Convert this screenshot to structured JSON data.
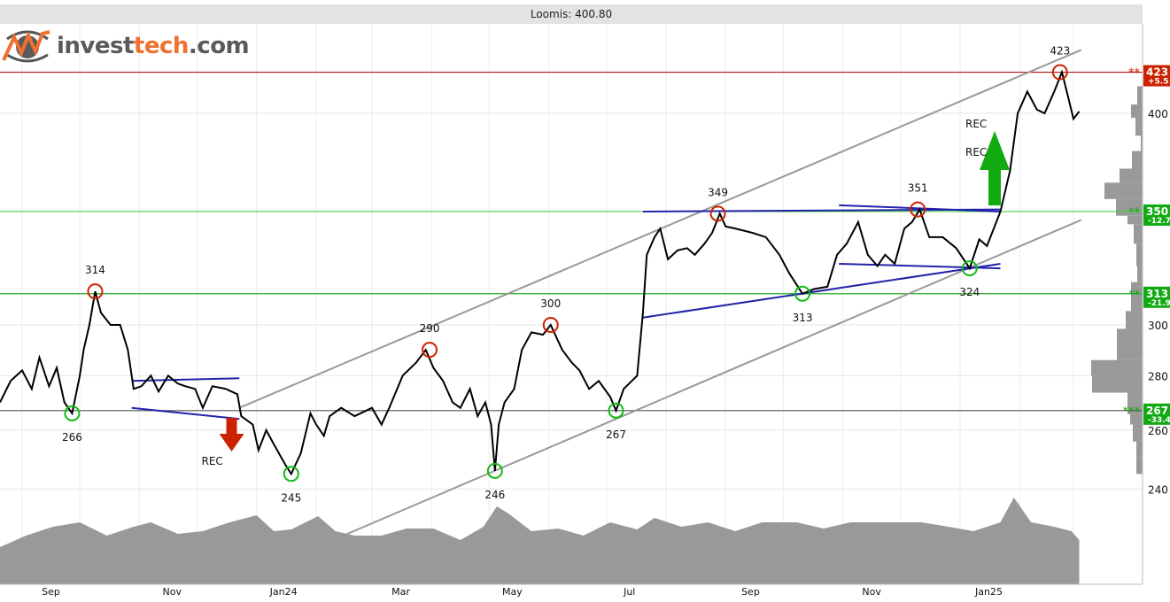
{
  "title": "Loomis: 400.80",
  "logo": {
    "part1": "invest",
    "part2": "tech",
    "part3": ".com"
  },
  "chart_data": {
    "type": "line",
    "title": "Loomis: 400.80",
    "y_scale": "log",
    "ylim": [
      218,
      445
    ],
    "x_unit": "days since 2023-09-01",
    "xlim": [
      -11.5,
      583
    ],
    "y_ticks": [
      400,
      300,
      280,
      260,
      240
    ],
    "x_ticks": [
      {
        "label": "Sep",
        "day": 15
      },
      {
        "label": "Nov",
        "day": 78
      },
      {
        "label": "Jan24",
        "day": 136
      },
      {
        "label": "Mar",
        "day": 197
      },
      {
        "label": "May",
        "day": 255
      },
      {
        "label": "Jul",
        "day": 316
      },
      {
        "label": "Sep",
        "day": 379
      },
      {
        "label": "Nov",
        "day": 442
      },
      {
        "label": "Jan25",
        "day": 503
      }
    ],
    "month_gridlines": [
      0,
      30,
      61,
      91,
      122,
      153,
      182,
      213,
      243,
      274,
      304,
      335,
      366,
      396,
      427,
      457,
      488,
      519,
      547
    ],
    "price": [
      [
        -12,
        270
      ],
      [
        -6,
        278
      ],
      [
        0,
        282
      ],
      [
        5,
        275
      ],
      [
        9,
        287
      ],
      [
        14,
        276
      ],
      [
        18,
        283
      ],
      [
        22,
        270
      ],
      [
        26,
        266
      ],
      [
        30,
        280
      ],
      [
        32,
        290
      ],
      [
        35,
        300
      ],
      [
        38,
        314
      ],
      [
        41,
        305
      ],
      [
        46,
        300
      ],
      [
        51,
        300
      ],
      [
        55,
        290
      ],
      [
        58,
        275
      ],
      [
        62,
        276
      ],
      [
        67,
        280
      ],
      [
        71,
        274
      ],
      [
        76,
        280
      ],
      [
        81,
        277
      ],
      [
        85,
        276
      ],
      [
        90,
        275
      ],
      [
        94,
        268
      ],
      [
        99,
        276
      ],
      [
        106,
        275
      ],
      [
        112,
        273
      ],
      [
        114,
        265
      ],
      [
        120,
        262
      ],
      [
        123,
        253
      ],
      [
        127,
        260
      ],
      [
        131,
        255
      ],
      [
        137,
        248
      ],
      [
        140,
        245
      ],
      [
        145,
        252
      ],
      [
        150,
        266
      ],
      [
        153,
        262
      ],
      [
        157,
        258
      ],
      [
        160,
        265
      ],
      [
        166,
        268
      ],
      [
        173,
        265
      ],
      [
        182,
        268
      ],
      [
        187,
        262
      ],
      [
        191,
        268
      ],
      [
        198,
        280
      ],
      [
        205,
        285
      ],
      [
        210,
        290
      ],
      [
        214,
        283
      ],
      [
        219,
        278
      ],
      [
        224,
        270
      ],
      [
        228,
        268
      ],
      [
        233,
        275
      ],
      [
        237,
        265
      ],
      [
        241,
        270
      ],
      [
        244,
        262
      ],
      [
        246,
        246
      ],
      [
        248,
        262
      ],
      [
        251,
        270
      ],
      [
        256,
        275
      ],
      [
        260,
        290
      ],
      [
        265,
        297
      ],
      [
        271,
        296
      ],
      [
        275,
        300
      ],
      [
        281,
        290
      ],
      [
        286,
        285
      ],
      [
        290,
        282
      ],
      [
        295,
        275
      ],
      [
        300,
        278
      ],
      [
        306,
        272
      ],
      [
        309,
        267
      ],
      [
        313,
        275
      ],
      [
        320,
        280
      ],
      [
        323,
        305
      ],
      [
        325,
        330
      ],
      [
        329,
        338
      ],
      [
        332,
        342
      ],
      [
        336,
        328
      ],
      [
        341,
        332
      ],
      [
        346,
        333
      ],
      [
        350,
        330
      ],
      [
        355,
        335
      ],
      [
        359,
        340
      ],
      [
        363,
        349
      ],
      [
        366,
        343
      ],
      [
        371,
        342
      ],
      [
        380,
        340
      ],
      [
        387,
        338
      ],
      [
        394,
        330
      ],
      [
        399,
        322
      ],
      [
        406,
        313
      ],
      [
        412,
        315
      ],
      [
        419,
        316
      ],
      [
        424,
        330
      ],
      [
        429,
        335
      ],
      [
        435,
        345
      ],
      [
        440,
        330
      ],
      [
        445,
        325
      ],
      [
        449,
        330
      ],
      [
        454,
        326
      ],
      [
        459,
        342
      ],
      [
        463,
        345
      ],
      [
        467,
        351
      ],
      [
        472,
        338
      ],
      [
        479,
        338
      ],
      [
        486,
        333
      ],
      [
        493,
        324
      ],
      [
        498,
        337
      ],
      [
        502,
        334
      ],
      [
        509,
        350
      ],
      [
        514,
        370
      ],
      [
        518,
        400
      ],
      [
        523,
        412
      ],
      [
        528,
        402
      ],
      [
        532,
        400
      ],
      [
        537,
        412
      ],
      [
        541,
        423
      ],
      [
        544,
        410
      ],
      [
        547,
        397
      ],
      [
        550,
        401
      ]
    ],
    "volume_relative": [
      [
        -12,
        42
      ],
      [
        2,
        55
      ],
      [
        16,
        65
      ],
      [
        30,
        70
      ],
      [
        44,
        55
      ],
      [
        58,
        65
      ],
      [
        67,
        70
      ],
      [
        81,
        57
      ],
      [
        94,
        60
      ],
      [
        108,
        70
      ],
      [
        122,
        78
      ],
      [
        131,
        60
      ],
      [
        140,
        62
      ],
      [
        154,
        77
      ],
      [
        163,
        60
      ],
      [
        173,
        55
      ],
      [
        187,
        55
      ],
      [
        200,
        63
      ],
      [
        214,
        63
      ],
      [
        228,
        50
      ],
      [
        240,
        65
      ],
      [
        247,
        88
      ],
      [
        253,
        80
      ],
      [
        265,
        60
      ],
      [
        279,
        63
      ],
      [
        292,
        55
      ],
      [
        306,
        70
      ],
      [
        320,
        62
      ],
      [
        329,
        75
      ],
      [
        343,
        65
      ],
      [
        357,
        70
      ],
      [
        371,
        60
      ],
      [
        385,
        70
      ],
      [
        403,
        70
      ],
      [
        417,
        63
      ],
      [
        431,
        70
      ],
      [
        449,
        70
      ],
      [
        468,
        70
      ],
      [
        482,
        65
      ],
      [
        495,
        60
      ],
      [
        509,
        70
      ],
      [
        516,
        98
      ],
      [
        525,
        70
      ],
      [
        537,
        65
      ],
      [
        546,
        60
      ],
      [
        550,
        50
      ]
    ],
    "volume_profile": [
      {
        "lo": 404.8,
        "hi": 415,
        "w": 6
      },
      {
        "lo": 397.6,
        "hi": 404.8,
        "w": 13
      },
      {
        "lo": 388,
        "hi": 397.6,
        "w": 8
      },
      {
        "lo": 380,
        "hi": 388,
        "w": 2
      },
      {
        "lo": 371,
        "hi": 380,
        "w": 12
      },
      {
        "lo": 364,
        "hi": 371,
        "w": 26
      },
      {
        "lo": 356,
        "hi": 364,
        "w": 43
      },
      {
        "lo": 348,
        "hi": 356,
        "w": 30
      },
      {
        "lo": 344,
        "hi": 348,
        "w": 17
      },
      {
        "lo": 335,
        "hi": 344,
        "w": 10
      },
      {
        "lo": 325,
        "hi": 335,
        "w": 7
      },
      {
        "lo": 318,
        "hi": 325,
        "w": 6
      },
      {
        "lo": 305.7,
        "hi": 318,
        "w": 13
      },
      {
        "lo": 298.4,
        "hi": 305.7,
        "w": 19
      },
      {
        "lo": 286,
        "hi": 298.4,
        "w": 29
      },
      {
        "lo": 279.8,
        "hi": 286,
        "w": 58
      },
      {
        "lo": 273.6,
        "hi": 279.8,
        "w": 57
      },
      {
        "lo": 265.7,
        "hi": 273.6,
        "w": 17
      },
      {
        "lo": 262,
        "hi": 265.7,
        "w": 14
      },
      {
        "lo": 256,
        "hi": 262,
        "w": 11
      },
      {
        "lo": 250.5,
        "hi": 256,
        "w": 7
      },
      {
        "lo": 245,
        "hi": 250.5,
        "w": 7
      }
    ],
    "levels": [
      {
        "value": 423,
        "label": "423",
        "pct": "+5.5",
        "stars": "**",
        "color": "#cc2200",
        "line": "#b01010"
      },
      {
        "value": 350,
        "label": "350",
        "pct": "-12.7",
        "stars": "**",
        "color": "#11aa11",
        "line": "#44cc44"
      },
      {
        "value": 313,
        "label": "313",
        "pct": "-21.9",
        "stars": "**",
        "color": "#11aa11",
        "line": "#22aa22"
      },
      {
        "value": 267,
        "label": "267",
        "pct": "-33.4",
        "stars": "***",
        "color": "#11aa11",
        "line": "#555555"
      }
    ],
    "trend_channel": [
      {
        "from": [
          113,
          268
        ],
        "to": [
          551,
          436
        ],
        "color": "#999999"
      },
      {
        "from": [
          166,
          225
        ],
        "to": [
          551,
          346
        ],
        "color": "#999999"
      }
    ],
    "formation_lines": [
      {
        "from": [
          57,
          278
        ],
        "to": [
          113,
          279
        ],
        "color": "#2222aa"
      },
      {
        "from": [
          57,
          268
        ],
        "to": [
          113,
          264
        ],
        "color": "#2222aa"
      },
      {
        "from": [
          323,
          303
        ],
        "to": [
          509,
          326
        ],
        "color": "#2222aa"
      },
      {
        "from": [
          323,
          350
        ],
        "to": [
          509,
          351
        ],
        "color": "#2222aa"
      },
      {
        "from": [
          425,
          353
        ],
        "to": [
          509,
          350
        ],
        "color": "#2222aa"
      },
      {
        "from": [
          425,
          326
        ],
        "to": [
          509,
          324
        ],
        "color": "#2222aa"
      }
    ],
    "tops": [
      {
        "day": 38,
        "value": 314,
        "label": "314"
      },
      {
        "day": 212,
        "value": 290,
        "label": "290"
      },
      {
        "day": 275,
        "value": 300,
        "label": "300"
      },
      {
        "day": 362,
        "value": 349,
        "label": "349"
      },
      {
        "day": 466,
        "value": 351,
        "label": "351"
      },
      {
        "day": 540,
        "value": 423,
        "label": "423"
      }
    ],
    "bottoms": [
      {
        "day": 26,
        "value": 266,
        "label": "266"
      },
      {
        "day": 140,
        "value": 245,
        "label": "245"
      },
      {
        "day": 246,
        "value": 246,
        "label": "246"
      },
      {
        "day": 309,
        "value": 267,
        "label": "267"
      },
      {
        "day": 406,
        "value": 313,
        "label": "313"
      },
      {
        "day": 493,
        "value": 324,
        "label": "324"
      }
    ],
    "signals": [
      {
        "type": "sell",
        "day": 109,
        "labels": [
          "REC"
        ],
        "color": "#cc2200"
      },
      {
        "type": "buy",
        "day": 506,
        "labels": [
          "REC",
          "REC"
        ],
        "color": "#11aa11"
      }
    ]
  }
}
